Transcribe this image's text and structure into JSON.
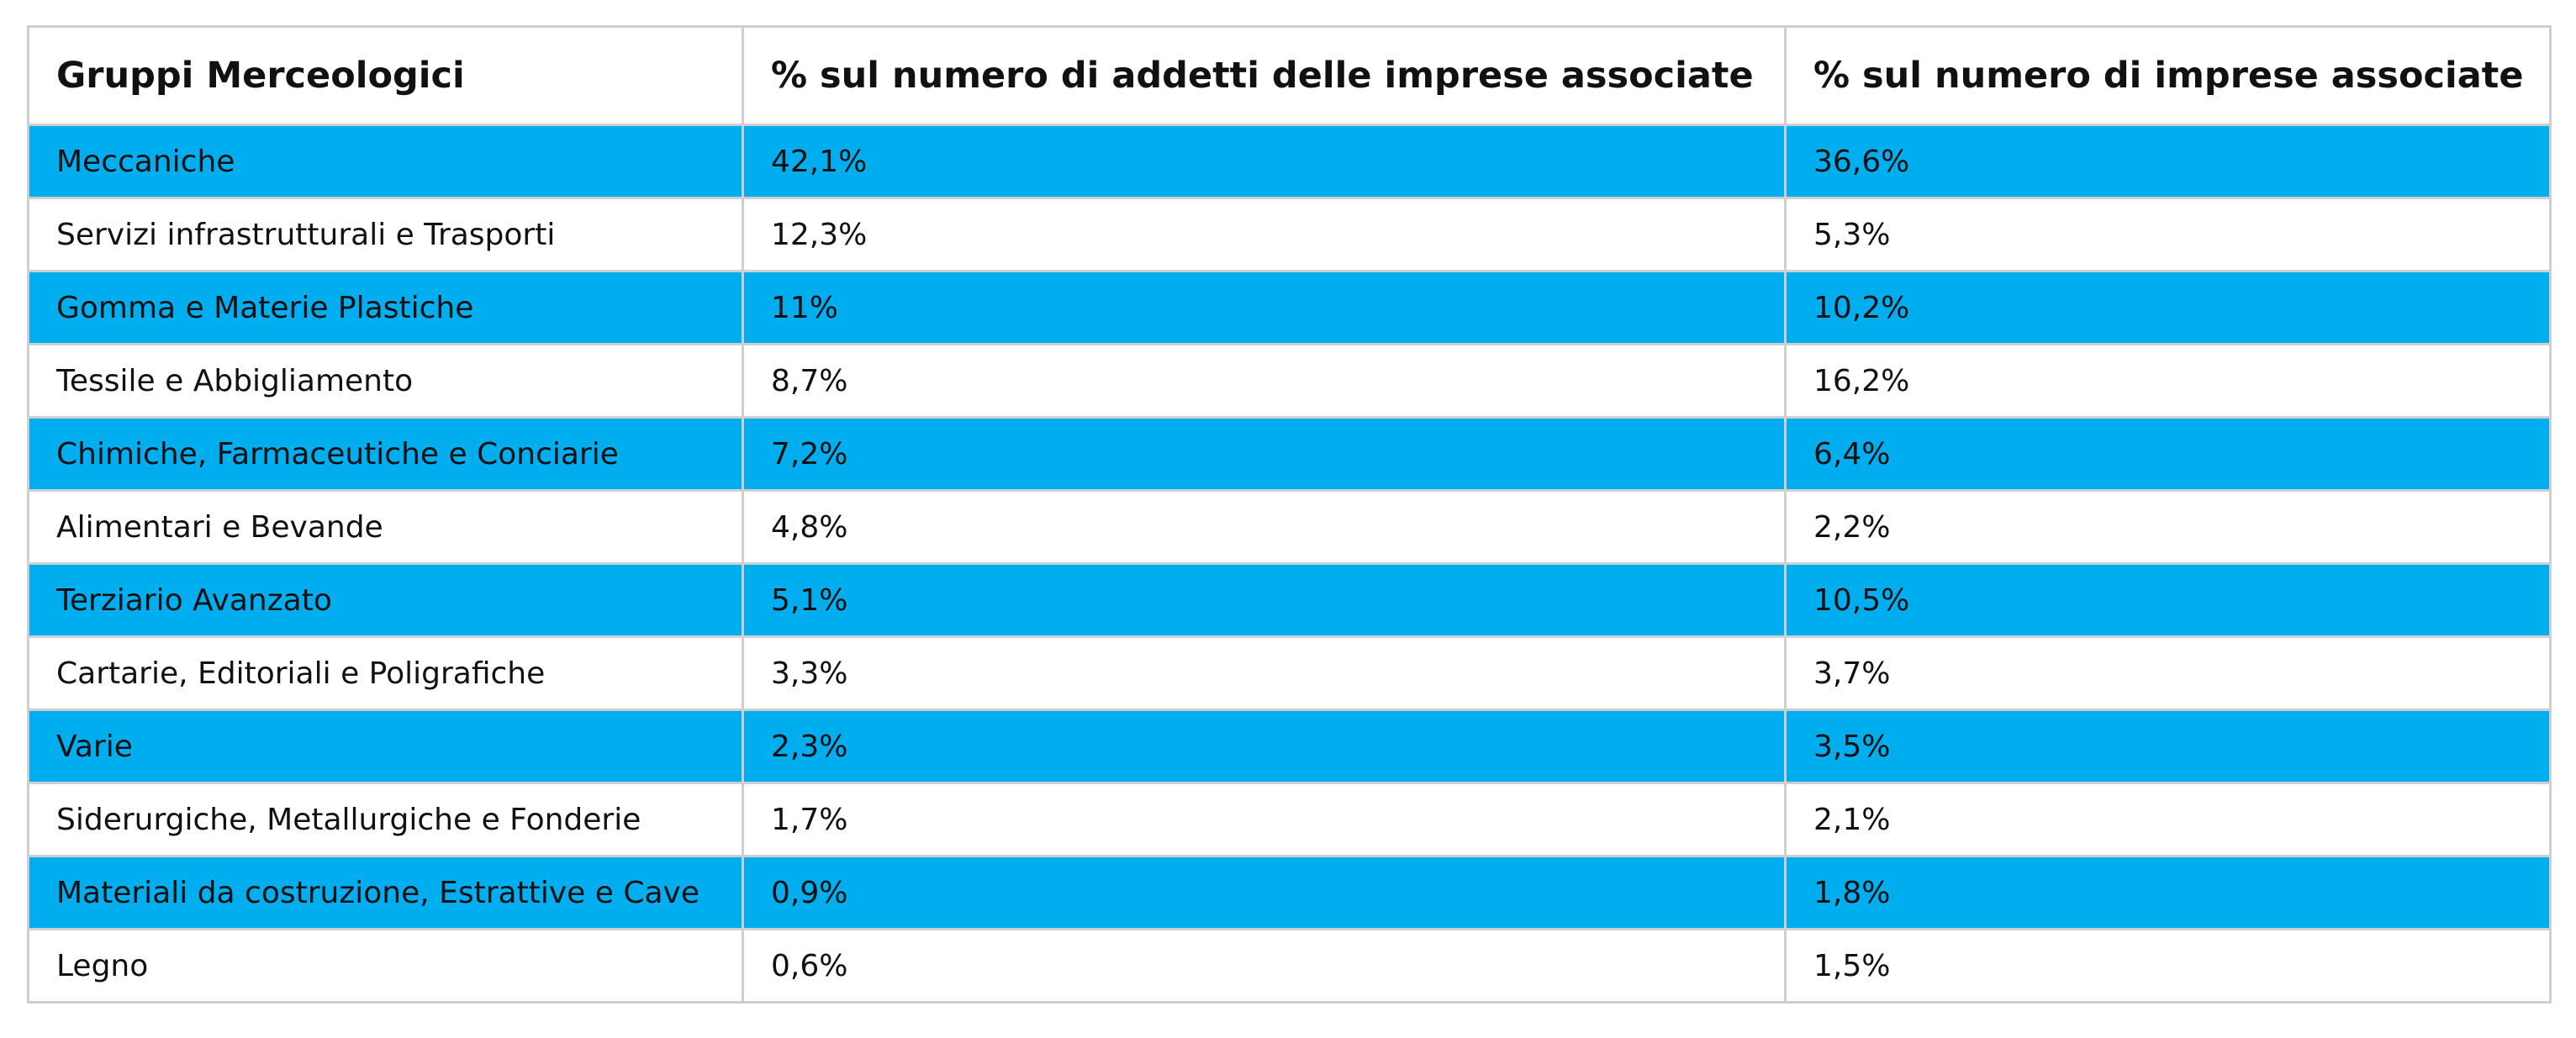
{
  "colors": {
    "row_highlight": "#00adef",
    "row_plain": "#ffffff",
    "border": "#cfcfcf",
    "text": "#111111"
  },
  "table": {
    "headers": [
      "Gruppi Merceologici",
      "% sul numero di addetti delle imprese associate",
      "% sul numero di imprese associate"
    ],
    "rows": [
      [
        "Meccaniche",
        "42,1%",
        "36,6%"
      ],
      [
        "Servizi infrastrutturali e Trasporti",
        "12,3%",
        "5,3%"
      ],
      [
        "Gomma e Materie Plastiche",
        "11%",
        "10,2%"
      ],
      [
        "Tessile e Abbigliamento",
        "8,7%",
        "16,2%"
      ],
      [
        "Chimiche, Farmaceutiche e Conciarie",
        "7,2%",
        "6,4%"
      ],
      [
        "Alimentari e Bevande",
        "4,8%",
        "2,2%"
      ],
      [
        "Terziario Avanzato",
        "5,1%",
        "10,5%"
      ],
      [
        "Cartarie, Editoriali e Poligrafiche",
        "3,3%",
        "3,7%"
      ],
      [
        "Varie",
        "2,3%",
        "3,5%"
      ],
      [
        "Siderurgiche, Metallurgiche e Fonderie",
        "1,7%",
        "2,1%"
      ],
      [
        "Materiali da costruzione, Estrattive e Cave",
        "0,9%",
        "1,8%"
      ],
      [
        "Legno",
        "0,6%",
        "1,5%"
      ]
    ]
  }
}
